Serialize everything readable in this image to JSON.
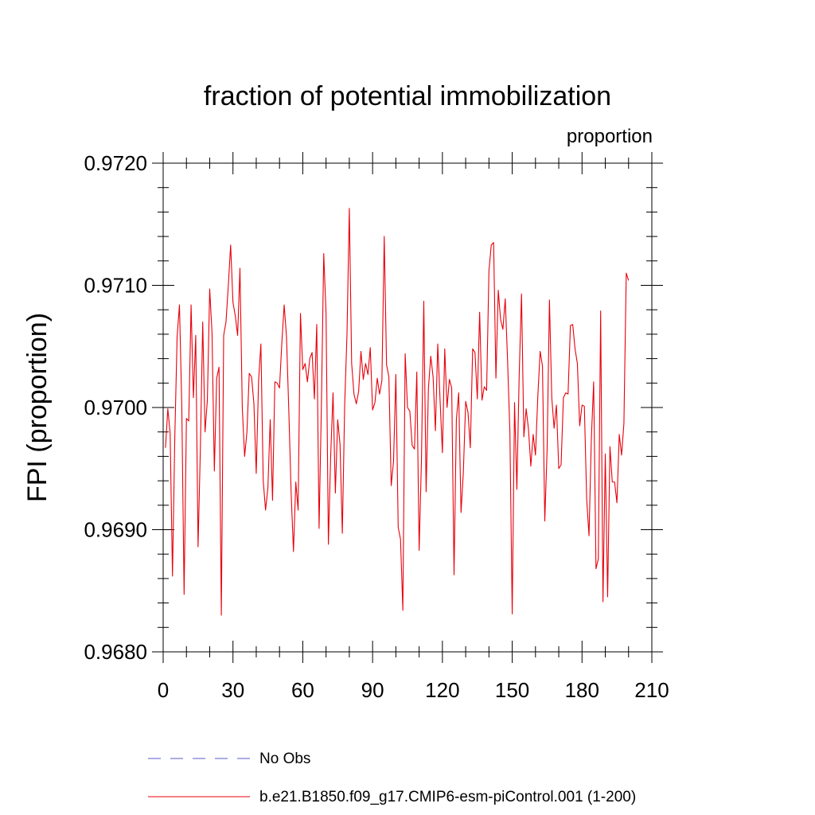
{
  "chart_data": {
    "type": "line",
    "title": "fraction of potential immobilization",
    "units_label": "proportion",
    "xlabel": "",
    "ylabel": "FPI  (proportion)",
    "xlim": [
      0,
      210
    ],
    "ylim": [
      0.968,
      0.972
    ],
    "x_ticks": [
      0,
      30,
      60,
      90,
      120,
      150,
      180,
      210
    ],
    "x_tick_labels": [
      "0",
      "30",
      "60",
      "90",
      "120",
      "150",
      "180",
      "210"
    ],
    "y_ticks": [
      0.968,
      0.969,
      0.97,
      0.971,
      0.972
    ],
    "y_tick_labels": [
      "0.9680",
      "0.9690",
      "0.9700",
      "0.9710",
      "0.9720"
    ],
    "y_minor_step": 0.0002,
    "x_minor_step": 10,
    "grid": false,
    "legend_position": "bottom",
    "legend": [
      {
        "name": "No Obs",
        "style": "dashed",
        "color": "#5a5acc"
      },
      {
        "name": "b.e21.B1850.f09_g17.CMIP6-esm-piControl.001 (1-200)",
        "style": "solid",
        "color": "#e8000b"
      }
    ],
    "series": [
      {
        "name": "b.e21.B1850.f09_g17.CMIP6-esm-piControl.001 (1-200)",
        "color": "#e8000b",
        "x_start": 1,
        "values": [
          0.96967,
          0.96999,
          0.96979,
          0.96862,
          0.96975,
          0.97058,
          0.97084,
          0.97002,
          0.96847,
          0.96991,
          0.96989,
          0.97084,
          0.97008,
          0.97059,
          0.96886,
          0.96967,
          0.9707,
          0.9698,
          0.97006,
          0.97097,
          0.97061,
          0.96948,
          0.97024,
          0.97033,
          0.9683,
          0.97059,
          0.9707,
          0.971,
          0.97133,
          0.97086,
          0.97075,
          0.97059,
          0.97114,
          0.97,
          0.9696,
          0.9698,
          0.97028,
          0.97025,
          0.97003,
          0.96946,
          0.97022,
          0.97052,
          0.9694,
          0.96916,
          0.96934,
          0.9699,
          0.96924,
          0.97021,
          0.9702,
          0.97016,
          0.97053,
          0.97084,
          0.97058,
          0.96997,
          0.9693,
          0.96882,
          0.96939,
          0.96916,
          0.97077,
          0.97031,
          0.97036,
          0.97021,
          0.9704,
          0.97045,
          0.97007,
          0.97068,
          0.96901,
          0.97002,
          0.97126,
          0.97077,
          0.96888,
          0.96961,
          0.97012,
          0.9693,
          0.9699,
          0.9697,
          0.96897,
          0.97002,
          0.9706,
          0.97163,
          0.97036,
          0.97011,
          0.97003,
          0.97013,
          0.97046,
          0.97023,
          0.97036,
          0.97027,
          0.97049,
          0.96998,
          0.97004,
          0.97024,
          0.97011,
          0.97022,
          0.9714,
          0.97035,
          0.97025,
          0.96936,
          0.96956,
          0.97027,
          0.96902,
          0.96892,
          0.96834,
          0.97044,
          0.97,
          0.96997,
          0.96969,
          0.96966,
          0.97029,
          0.96883,
          0.96957,
          0.97087,
          0.96931,
          0.97016,
          0.97042,
          0.97025,
          0.96981,
          0.97052,
          0.97006,
          0.96963,
          0.97048,
          0.97,
          0.97023,
          0.97016,
          0.96863,
          0.9699,
          0.97012,
          0.96914,
          0.96947,
          0.97005,
          0.96996,
          0.96967,
          0.97048,
          0.97045,
          0.97007,
          0.97078,
          0.97006,
          0.97017,
          0.97014,
          0.97112,
          0.97133,
          0.97135,
          0.97024,
          0.97096,
          0.97072,
          0.97064,
          0.97089,
          0.97039,
          0.9698,
          0.96831,
          0.97004,
          0.96933,
          0.97027,
          0.97093,
          0.96976,
          0.96999,
          0.96982,
          0.96952,
          0.96978,
          0.96961,
          0.97009,
          0.97046,
          0.97034,
          0.96907,
          0.96966,
          0.97088,
          0.97008,
          0.96983,
          0.97002,
          0.9695,
          0.96953,
          0.97008,
          0.97012,
          0.97011,
          0.97067,
          0.97068,
          0.97048,
          0.97036,
          0.96985,
          0.97002,
          0.97001,
          0.96925,
          0.96895,
          0.96974,
          0.97021,
          0.96868,
          0.96876,
          0.97079,
          0.96841,
          0.96962,
          0.96845,
          0.96968,
          0.96939,
          0.96939,
          0.96922,
          0.96978,
          0.96961,
          0.96987,
          0.9711,
          0.97104
        ]
      }
    ]
  }
}
